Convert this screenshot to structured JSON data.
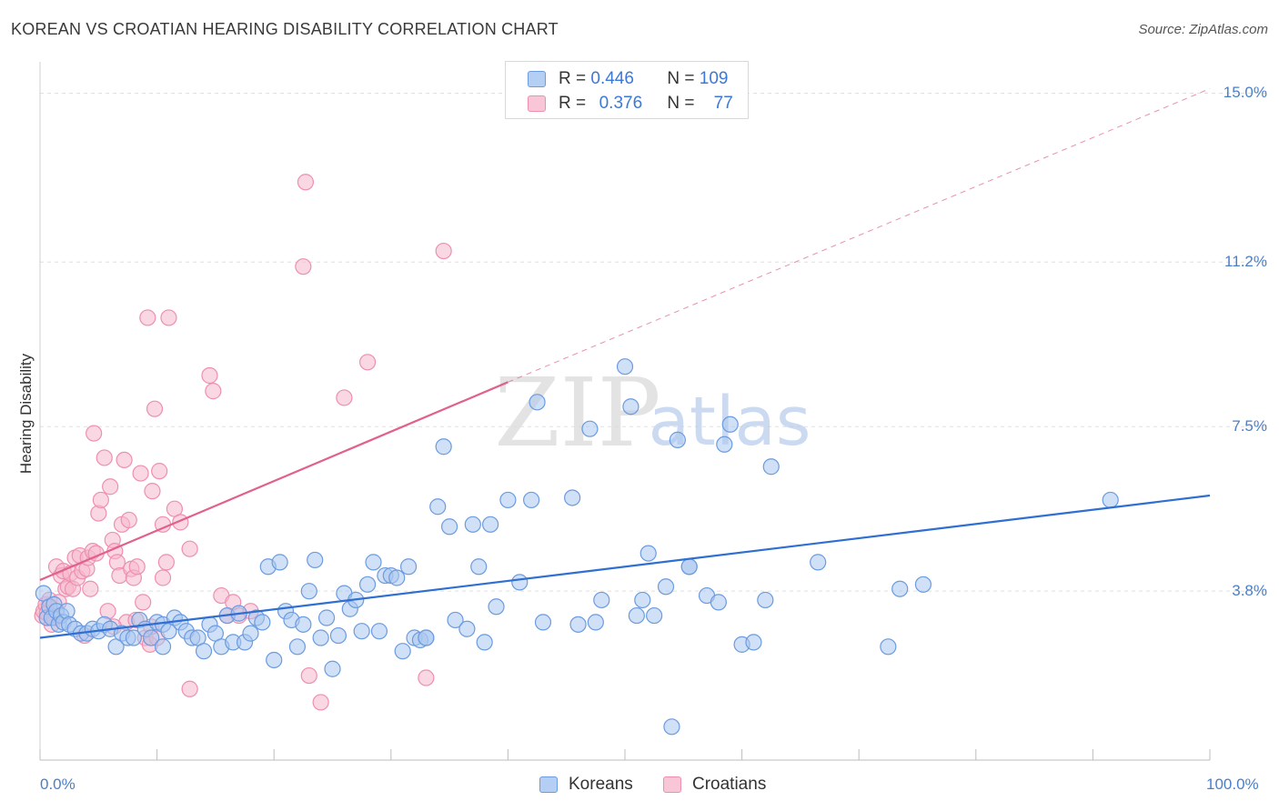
{
  "title": "KOREAN VS CROATIAN HEARING DISABILITY CORRELATION CHART",
  "source": "Source: ZipAtlas.com",
  "watermark": {
    "zip": "ZIP",
    "atlas": "atlas"
  },
  "legend": {
    "rows": [
      {
        "r_label": "R =",
        "r_value": "0.446",
        "n_label": "N =",
        "n_value": "109"
      },
      {
        "r_label": "R =",
        "r_value": "0.376",
        "n_label": "N =",
        "n_value": "77"
      }
    ]
  },
  "bottom_legend": {
    "koreans": "Koreans",
    "croatians": "Croatians"
  },
  "colors": {
    "koreans_fill": "#a9c6ee",
    "koreans_stroke": "#6b9be0",
    "koreans_line": "#2f6fd1",
    "croatians_fill": "#f5b8cc",
    "croatians_stroke": "#ee8fb0",
    "croatians_line": "#e0608e",
    "axis_label": "#4a7fc8",
    "grid": "#e0e0e0"
  },
  "chart_data": {
    "type": "scatter",
    "title": "KOREAN VS CROATIAN HEARING DISABILITY CORRELATION CHART",
    "xlabel": "",
    "ylabel": "Hearing Disability",
    "xlim": [
      0,
      100
    ],
    "ylim": [
      0,
      15.5
    ],
    "x_tick_labels": [
      "0.0%",
      "100.0%"
    ],
    "y_ticks": [
      3.8,
      7.5,
      11.2,
      15.0
    ],
    "y_tick_labels": [
      "3.8%",
      "7.5%",
      "11.2%",
      "15.0%"
    ],
    "grid": true,
    "legend_position": "top-center",
    "series": [
      {
        "name": "Koreans",
        "R": 0.446,
        "N": 109,
        "trend": {
          "x": [
            0,
            100
          ],
          "y": [
            2.75,
            5.95
          ],
          "dashed_extension": false
        },
        "points": [
          [
            0.3,
            3.75
          ],
          [
            0.6,
            3.2
          ],
          [
            0.8,
            3.45
          ],
          [
            1.0,
            3.2
          ],
          [
            1.2,
            3.5
          ],
          [
            1.4,
            3.35
          ],
          [
            1.6,
            3.05
          ],
          [
            1.8,
            3.25
          ],
          [
            2.0,
            3.1
          ],
          [
            2.3,
            3.35
          ],
          [
            2.5,
            3.05
          ],
          [
            3.0,
            2.95
          ],
          [
            3.5,
            2.85
          ],
          [
            4.0,
            2.85
          ],
          [
            4.5,
            2.95
          ],
          [
            5.0,
            2.9
          ],
          [
            5.5,
            3.05
          ],
          [
            6.0,
            2.95
          ],
          [
            6.5,
            2.55
          ],
          [
            7.0,
            2.85
          ],
          [
            7.5,
            2.75
          ],
          [
            8.0,
            2.75
          ],
          [
            8.5,
            3.15
          ],
          [
            9.0,
            2.95
          ],
          [
            9.5,
            2.75
          ],
          [
            10.0,
            3.1
          ],
          [
            10.5,
            3.05
          ],
          [
            10.5,
            2.55
          ],
          [
            11.0,
            2.9
          ],
          [
            11.5,
            3.2
          ],
          [
            12.0,
            3.1
          ],
          [
            12.5,
            2.9
          ],
          [
            13.0,
            2.75
          ],
          [
            13.5,
            2.75
          ],
          [
            14.0,
            2.45
          ],
          [
            14.5,
            3.05
          ],
          [
            15.0,
            2.85
          ],
          [
            15.5,
            2.55
          ],
          [
            16.0,
            3.25
          ],
          [
            16.5,
            2.65
          ],
          [
            17.0,
            3.3
          ],
          [
            17.5,
            2.65
          ],
          [
            18.0,
            2.85
          ],
          [
            18.5,
            3.2
          ],
          [
            19.0,
            3.1
          ],
          [
            19.5,
            4.35
          ],
          [
            20.0,
            2.25
          ],
          [
            20.5,
            4.45
          ],
          [
            21.0,
            3.35
          ],
          [
            21.5,
            3.15
          ],
          [
            22.0,
            2.55
          ],
          [
            22.5,
            3.05
          ],
          [
            23.0,
            3.8
          ],
          [
            23.5,
            4.5
          ],
          [
            24.0,
            2.75
          ],
          [
            24.5,
            3.2
          ],
          [
            25.0,
            2.05
          ],
          [
            25.5,
            2.8
          ],
          [
            26.0,
            3.75
          ],
          [
            26.5,
            3.4
          ],
          [
            27.0,
            3.6
          ],
          [
            27.5,
            2.9
          ],
          [
            28.0,
            3.95
          ],
          [
            28.5,
            4.45
          ],
          [
            29.0,
            2.9
          ],
          [
            29.5,
            4.15
          ],
          [
            30.0,
            4.15
          ],
          [
            30.5,
            4.1
          ],
          [
            31.0,
            2.45
          ],
          [
            31.5,
            4.35
          ],
          [
            32.0,
            2.75
          ],
          [
            32.5,
            2.7
          ],
          [
            33.0,
            2.75
          ],
          [
            33.0,
            2.75
          ],
          [
            34.0,
            5.7
          ],
          [
            34.5,
            7.05
          ],
          [
            35.0,
            5.25
          ],
          [
            35.5,
            3.15
          ],
          [
            36.5,
            2.95
          ],
          [
            37.0,
            5.3
          ],
          [
            37.5,
            4.35
          ],
          [
            38.0,
            2.65
          ],
          [
            38.5,
            5.3
          ],
          [
            39.0,
            3.45
          ],
          [
            40.0,
            5.85
          ],
          [
            41.0,
            4.0
          ],
          [
            42.0,
            5.85
          ],
          [
            42.5,
            8.05
          ],
          [
            43.0,
            3.1
          ],
          [
            45.5,
            5.9
          ],
          [
            46.0,
            3.05
          ],
          [
            47.0,
            7.45
          ],
          [
            47.5,
            3.1
          ],
          [
            48.0,
            3.6
          ],
          [
            50.0,
            8.85
          ],
          [
            50.5,
            7.95
          ],
          [
            51.0,
            3.25
          ],
          [
            51.5,
            3.6
          ],
          [
            52.0,
            4.65
          ],
          [
            52.5,
            3.25
          ],
          [
            53.5,
            3.9
          ],
          [
            54.0,
            0.75
          ],
          [
            54.5,
            7.2
          ],
          [
            55.5,
            4.35
          ],
          [
            55.5,
            4.35
          ],
          [
            57.0,
            3.7
          ],
          [
            58.0,
            3.55
          ],
          [
            58.5,
            7.1
          ],
          [
            59.0,
            7.55
          ],
          [
            60.0,
            2.6
          ],
          [
            61.0,
            2.65
          ],
          [
            62.0,
            3.6
          ],
          [
            62.5,
            6.6
          ],
          [
            66.5,
            4.45
          ],
          [
            72.5,
            2.55
          ],
          [
            73.5,
            3.85
          ],
          [
            75.5,
            3.95
          ],
          [
            91.5,
            5.85
          ]
        ]
      },
      {
        "name": "Croatians",
        "R": 0.376,
        "N": 77,
        "trend": {
          "x": [
            0,
            40
          ],
          "y": [
            4.05,
            8.5
          ],
          "dashed_extension": {
            "x": [
              40,
              100
            ],
            "y": [
              8.5,
              15.1
            ]
          }
        },
        "points": [
          [
            0.2,
            3.25
          ],
          [
            0.3,
            3.35
          ],
          [
            0.5,
            3.5
          ],
          [
            0.6,
            3.3
          ],
          [
            0.8,
            3.6
          ],
          [
            1.0,
            3.05
          ],
          [
            1.2,
            3.2
          ],
          [
            1.4,
            4.35
          ],
          [
            1.6,
            3.55
          ],
          [
            1.8,
            4.15
          ],
          [
            2.0,
            4.25
          ],
          [
            2.2,
            3.85
          ],
          [
            2.4,
            3.9
          ],
          [
            2.6,
            4.2
          ],
          [
            2.8,
            3.85
          ],
          [
            3.0,
            4.55
          ],
          [
            3.2,
            4.1
          ],
          [
            3.4,
            4.6
          ],
          [
            3.6,
            4.25
          ],
          [
            3.8,
            2.8
          ],
          [
            4.0,
            4.3
          ],
          [
            4.1,
            4.55
          ],
          [
            4.3,
            3.85
          ],
          [
            4.5,
            4.7
          ],
          [
            4.6,
            7.35
          ],
          [
            4.8,
            4.65
          ],
          [
            5.0,
            5.55
          ],
          [
            5.2,
            5.85
          ],
          [
            5.5,
            6.8
          ],
          [
            5.8,
            3.35
          ],
          [
            6.0,
            6.15
          ],
          [
            6.2,
            4.95
          ],
          [
            6.4,
            4.7
          ],
          [
            6.6,
            4.45
          ],
          [
            6.8,
            4.15
          ],
          [
            7.0,
            5.3
          ],
          [
            7.2,
            6.75
          ],
          [
            7.4,
            3.1
          ],
          [
            7.6,
            5.4
          ],
          [
            7.8,
            4.3
          ],
          [
            8.0,
            4.1
          ],
          [
            8.3,
            4.35
          ],
          [
            8.6,
            6.45
          ],
          [
            8.8,
            3.55
          ],
          [
            9.0,
            2.75
          ],
          [
            9.2,
            9.95
          ],
          [
            9.4,
            2.6
          ],
          [
            9.6,
            6.05
          ],
          [
            9.8,
            7.9
          ],
          [
            10.0,
            2.75
          ],
          [
            10.2,
            6.5
          ],
          [
            10.5,
            5.3
          ],
          [
            10.5,
            4.1
          ],
          [
            10.8,
            4.45
          ],
          [
            11.0,
            9.95
          ],
          [
            11.5,
            5.65
          ],
          [
            12.0,
            5.35
          ],
          [
            12.8,
            1.6
          ],
          [
            12.8,
            4.75
          ],
          [
            14.5,
            8.65
          ],
          [
            14.8,
            8.3
          ],
          [
            15.5,
            3.7
          ],
          [
            16.0,
            3.25
          ],
          [
            16.5,
            3.55
          ],
          [
            17.0,
            3.25
          ],
          [
            18.0,
            3.35
          ],
          [
            22.5,
            11.1
          ],
          [
            22.7,
            13.0
          ],
          [
            23.0,
            1.9
          ],
          [
            24.0,
            1.3
          ],
          [
            26.0,
            8.15
          ],
          [
            28.0,
            8.95
          ],
          [
            33.0,
            1.85
          ],
          [
            34.5,
            11.45
          ],
          [
            8.2,
            3.15
          ],
          [
            9.5,
            3.0
          ],
          [
            6.3,
            3.0
          ]
        ]
      }
    ]
  }
}
